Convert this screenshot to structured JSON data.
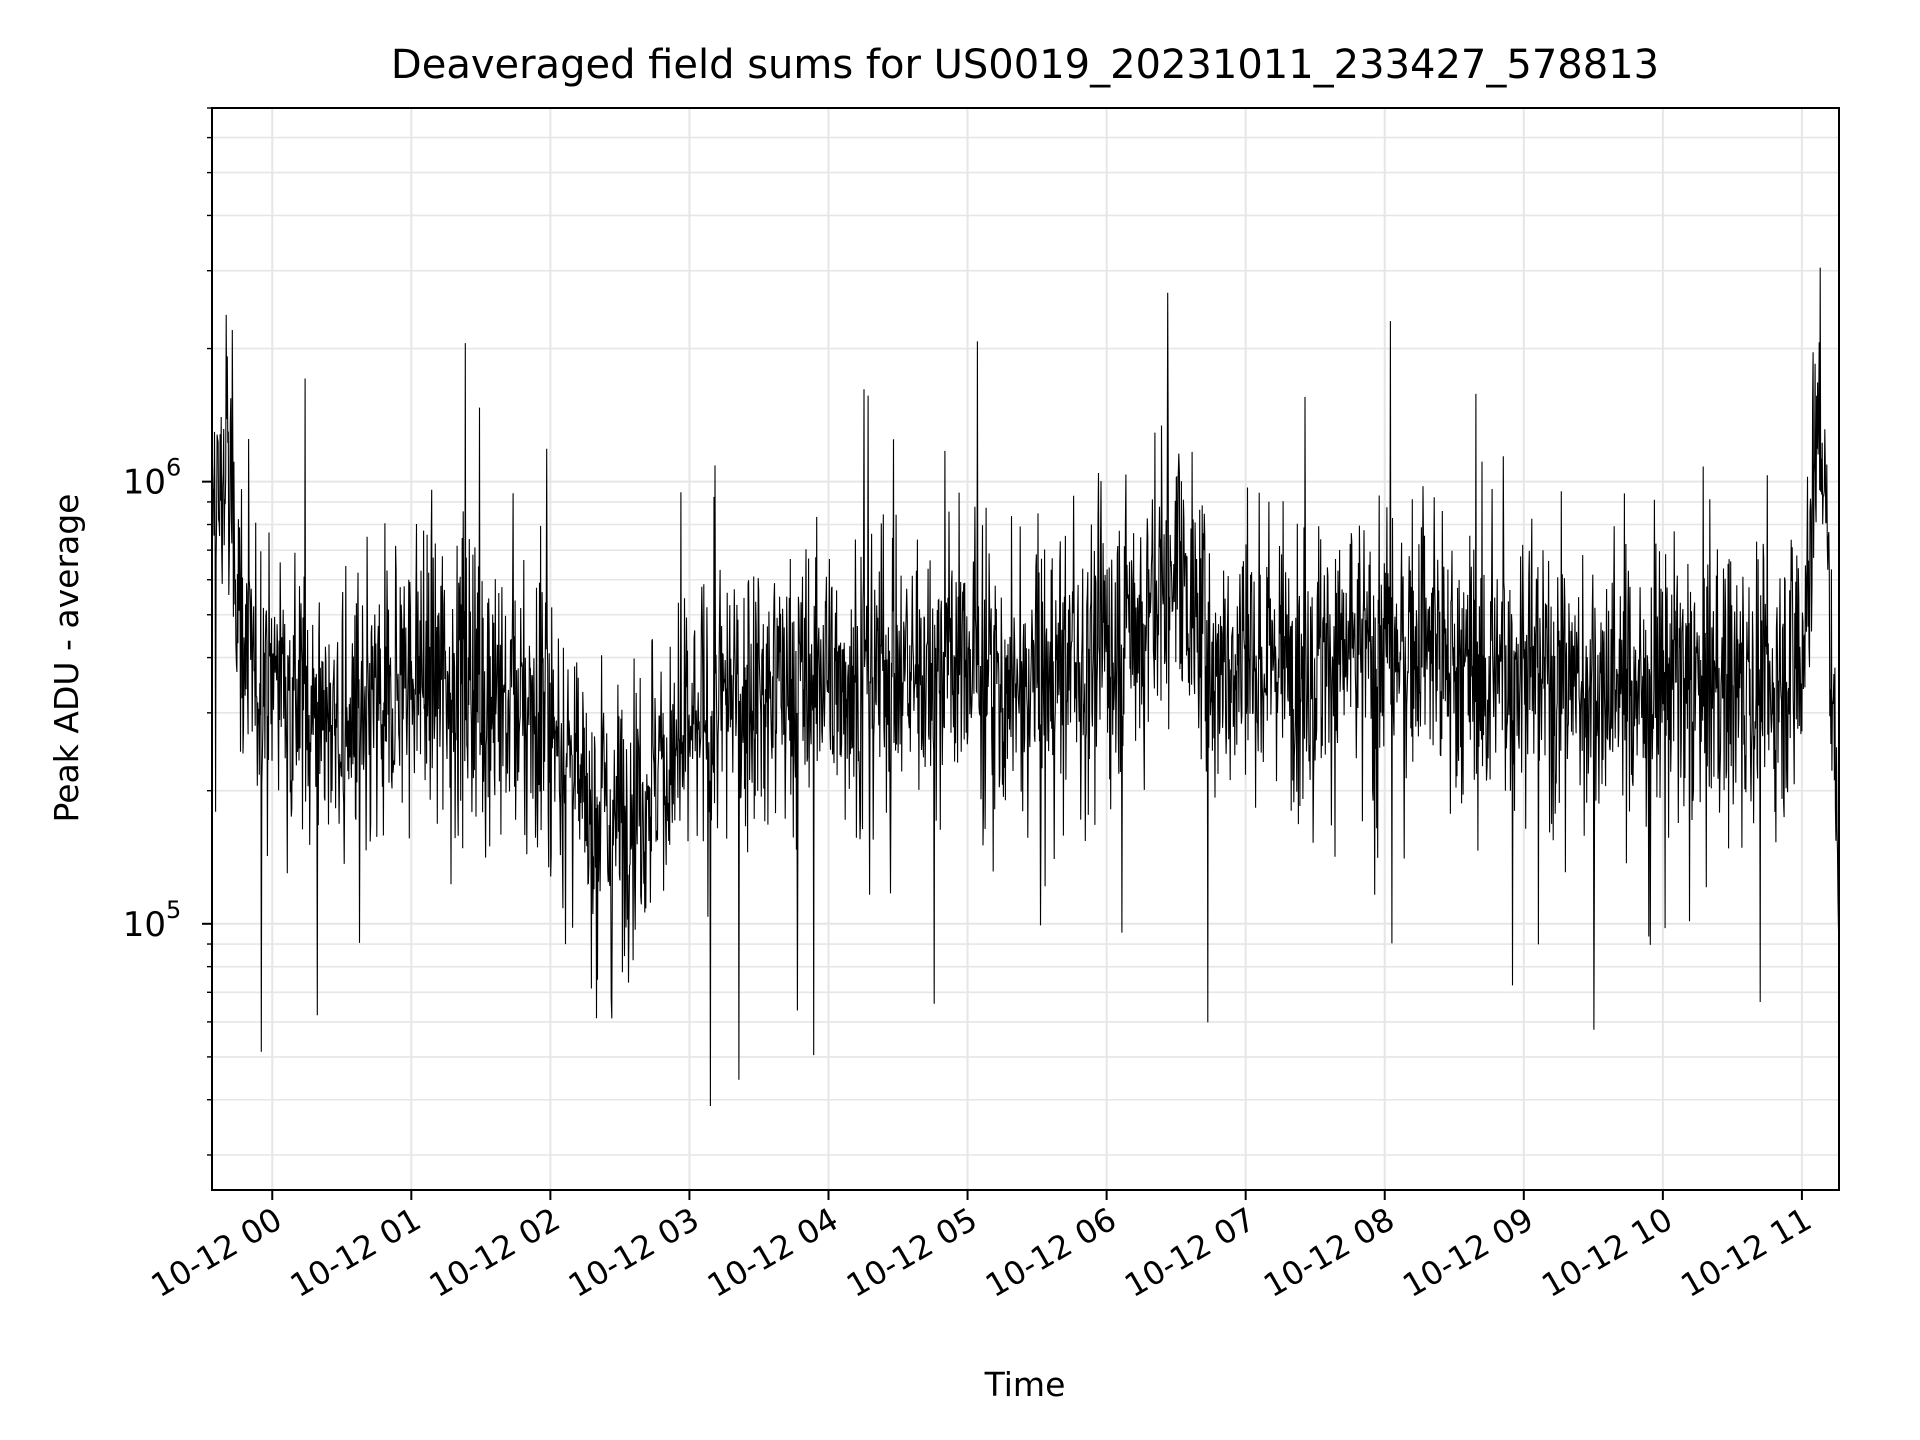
{
  "chart_data": {
    "type": "line",
    "title": "Deaveraged field sums for US0019_20231011_233427_578813",
    "xlabel": "Time",
    "ylabel": "Peak ADU - average",
    "yscale": "log",
    "ylim": [
      25000,
      7000000
    ],
    "xlim": [
      "2023-10-11 23:34",
      "2023-10-12 11:16"
    ],
    "x_tick_labels": [
      "10-12 00",
      "10-12 01",
      "10-12 02",
      "10-12 03",
      "10-12 04",
      "10-12 05",
      "10-12 06",
      "10-12 07",
      "10-12 08",
      "10-12 09",
      "10-12 10",
      "10-12 11"
    ],
    "y_ticks": [
      {
        "value": 100000,
        "base": "10",
        "exp": "5"
      },
      {
        "value": 1000000,
        "base": "10",
        "exp": "6"
      }
    ],
    "grid": true,
    "line_color": "#000000",
    "grid_color": "#e6e6e6",
    "series": [
      {
        "x": [
          "2023-10-11 23:34",
          "2023-10-11 23:40",
          "2023-10-11 23:50",
          "2023-10-12 00:00",
          "2023-10-12 00:15",
          "2023-10-12 00:30",
          "2023-10-12 00:45",
          "2023-10-12 01:00",
          "2023-10-12 01:15",
          "2023-10-12 01:30",
          "2023-10-12 01:45",
          "2023-10-12 02:00",
          "2023-10-12 02:15",
          "2023-10-12 02:30",
          "2023-10-12 02:45",
          "2023-10-12 03:00",
          "2023-10-12 03:15",
          "2023-10-12 03:30",
          "2023-10-12 03:45",
          "2023-10-12 04:00",
          "2023-10-12 04:15",
          "2023-10-12 04:30",
          "2023-10-12 04:45",
          "2023-10-12 05:00",
          "2023-10-12 05:15",
          "2023-10-12 05:30",
          "2023-10-12 05:45",
          "2023-10-12 06:00",
          "2023-10-12 06:15",
          "2023-10-12 06:30",
          "2023-10-12 06:45",
          "2023-10-12 07:00",
          "2023-10-12 07:15",
          "2023-10-12 07:30",
          "2023-10-12 07:45",
          "2023-10-12 08:00",
          "2023-10-12 08:15",
          "2023-10-12 08:30",
          "2023-10-12 08:45",
          "2023-10-12 09:00",
          "2023-10-12 09:15",
          "2023-10-12 09:30",
          "2023-10-12 09:45",
          "2023-10-12 10:00",
          "2023-10-12 10:15",
          "2023-10-12 10:30",
          "2023-10-12 10:45",
          "2023-10-12 11:00",
          "2023-10-12 11:08",
          "2023-10-12 11:16"
        ],
        "y": [
          800000,
          1100000,
          350000,
          380000,
          330000,
          260000,
          300000,
          370000,
          380000,
          340000,
          300000,
          290000,
          190000,
          170000,
          220000,
          250000,
          310000,
          340000,
          330000,
          360000,
          370000,
          380000,
          370000,
          400000,
          330000,
          360000,
          380000,
          420000,
          480000,
          700000,
          380000,
          400000,
          420000,
          390000,
          410000,
          420000,
          430000,
          380000,
          360000,
          380000,
          360000,
          340000,
          350000,
          360000,
          330000,
          350000,
          330000,
          420000,
          1500000,
          140000
        ]
      }
    ]
  }
}
